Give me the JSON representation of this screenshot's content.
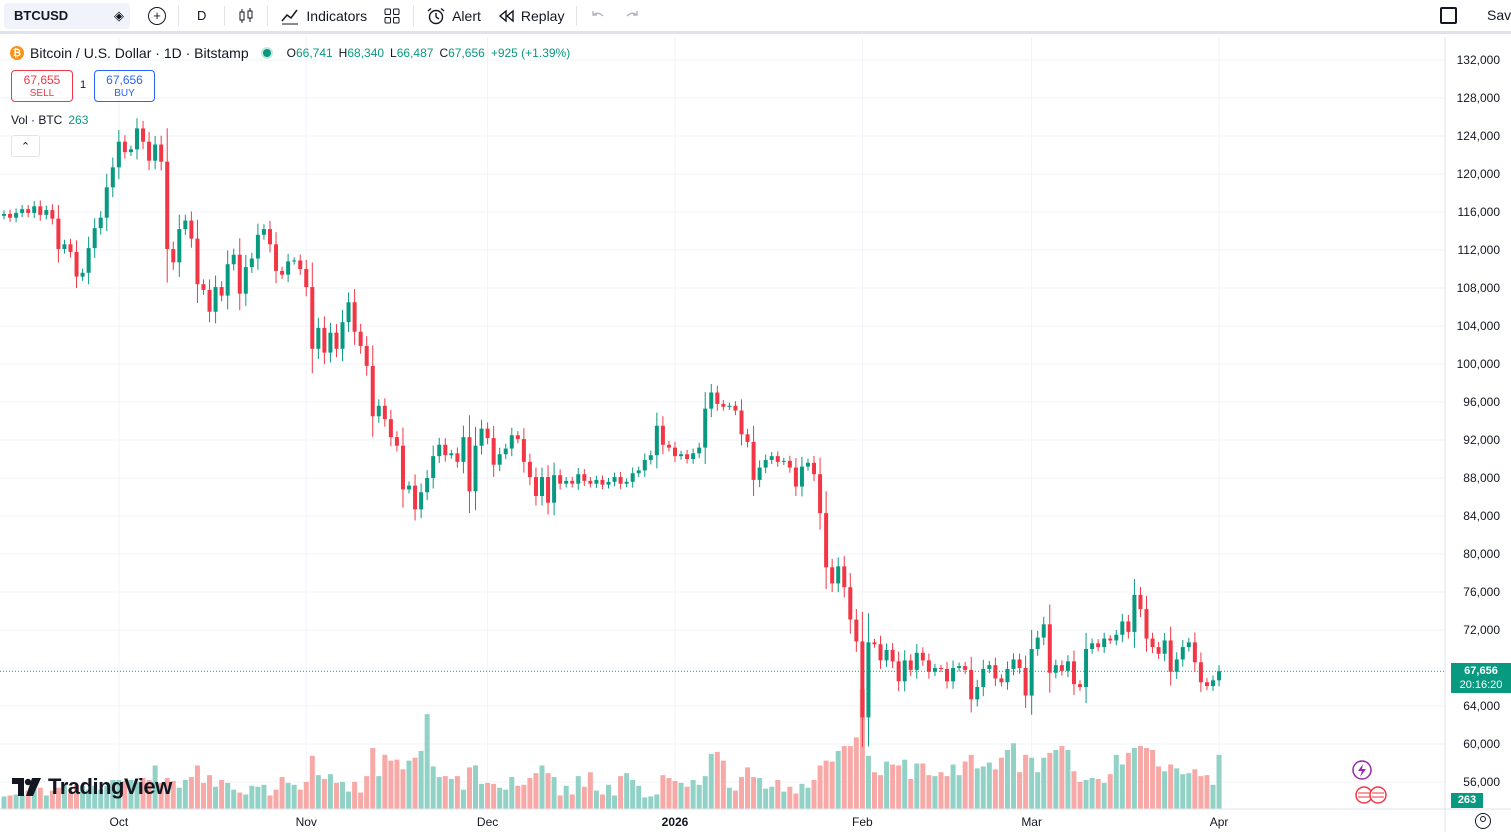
{
  "toolbar": {
    "symbol": "BTCUSD",
    "interval": "D",
    "indicators_label": "Indicators",
    "alert_label": "Alert",
    "replay_label": "Replay",
    "save_label": "Save"
  },
  "legend": {
    "title": "Bitcoin / U.S. Dollar · 1D · Bitstamp",
    "open_key": "O",
    "open": "66,741",
    "high_key": "H",
    "high": "68,340",
    "low_key": "L",
    "low": "66,487",
    "close_key": "C",
    "close": "67,656",
    "change": "+925 (+1.39%)"
  },
  "trade": {
    "sell_price": "67,655",
    "sell_label": "SELL",
    "quantity": "1",
    "buy_price": "67,656",
    "buy_label": "BUY"
  },
  "volume_legend": {
    "label": "Vol · BTC",
    "value": "263"
  },
  "branding": {
    "logo_text": "TradingView"
  },
  "price_tag": {
    "price": "67,656",
    "countdown": "20:16:20"
  },
  "volume_tag": "263",
  "colors": {
    "up": "#089981",
    "down": "#f23645",
    "up_vol": "#92d2c6",
    "down_vol": "#f7a9a7"
  },
  "chart_data": {
    "type": "candlestick",
    "title": "Bitcoin / U.S. Dollar · 1D · Bitstamp",
    "y_axis_labels": [
      "132,000",
      "128,000",
      "124,000",
      "120,000",
      "116,000",
      "112,000",
      "108,000",
      "104,000",
      "100,000",
      "96,000",
      "92,000",
      "88,000",
      "84,000",
      "80,000",
      "76,000",
      "72,000",
      "68,000",
      "64,000",
      "60,000",
      "56,000"
    ],
    "ylim": [
      52800,
      133600
    ],
    "x_axis_labels": [
      "Oct",
      "Nov",
      "Dec",
      "2026",
      "Feb",
      "Mar",
      "Apr"
    ],
    "x_label_dates": [
      "2025-10-01",
      "2025-11-01",
      "2025-12-01",
      "2026-01-01",
      "2026-02-01",
      "2026-03-01",
      "2026-04-01"
    ],
    "start_date": "2025-09-12",
    "series": [
      {
        "name": "close",
        "values": [
          115800,
          115400,
          115900,
          116300,
          115900,
          116600,
          115700,
          116200,
          115300,
          112100,
          112600,
          111800,
          109200,
          109600,
          112200,
          114300,
          115400,
          118600,
          120700,
          123400,
          122300,
          122600,
          124800,
          123400,
          121400,
          123100,
          121300,
          112100,
          110700,
          114200,
          115100,
          113200,
          108400,
          107800,
          105500,
          108100,
          107200,
          110500,
          111500,
          107400,
          110200,
          111100,
          113600,
          114200,
          112600,
          109800,
          109400,
          110800,
          110900,
          110000,
          108100,
          101600,
          103800,
          101200,
          103300,
          101600,
          104400,
          106500,
          103400,
          101900,
          99800,
          94500,
          95600,
          94200,
          92300,
          91400,
          86800,
          87200,
          84700,
          86500,
          88000,
          90300,
          91500,
          90400,
          90600,
          89700,
          92300,
          86600,
          91400,
          93200,
          92200,
          89400,
          90500,
          91100,
          92500,
          92100,
          89700,
          88100,
          86100,
          88100,
          85400,
          88300,
          87400,
          87700,
          87400,
          88400,
          87700,
          87400,
          87800,
          87300,
          87600,
          88100,
          87400,
          87600,
          88500,
          88800,
          89900,
          90400,
          93500,
          91500,
          91200,
          90300,
          90500,
          90000,
          90600,
          91200,
          95300,
          97000,
          95800,
          95500,
          95600,
          95100,
          92600,
          91800,
          87800,
          89100,
          89900,
          90300,
          89700,
          89800,
          89100,
          87100,
          89200,
          89600,
          88400,
          84300,
          78600,
          76900,
          78700,
          76500,
          73100,
          70800,
          62800,
          70700,
          70500,
          68800,
          69900,
          68700,
          66600,
          68800,
          67800,
          69600,
          68800,
          67600,
          68000,
          67900,
          66600,
          68000,
          68200,
          67800,
          64700,
          66000,
          67900,
          68300,
          66900,
          66500,
          67900,
          68900,
          68000,
          65100,
          70000,
          71200,
          72600,
          67500,
          68300,
          67700,
          68700,
          66300,
          66000,
          70000,
          70600,
          70200,
          71100,
          70900,
          71500,
          72900,
          71800,
          75700,
          74200,
          71100,
          70200,
          69500,
          70900,
          67600,
          68900,
          70200,
          70700,
          68600,
          66500,
          66100,
          66700,
          67656
        ]
      },
      {
        "name": "volume",
        "values": [
          1300,
          1400,
          1500,
          1500,
          1900,
          2000,
          2200,
          1400,
          1900,
          2200,
          2500,
          1700,
          2500,
          2400,
          2000,
          2400,
          2000,
          2400,
          3000,
          3000,
          2900,
          3000,
          2800,
          3200,
          3000,
          4500,
          2700,
          3200,
          2900,
          2200,
          3000,
          3300,
          4500,
          2700,
          3500,
          2300,
          3000,
          2700,
          2000,
          1700,
          1500,
          2400,
          2300,
          2500,
          1400,
          2000,
          3300,
          2700,
          2500,
          2000,
          2800,
          5500,
          3500,
          3100,
          3600,
          2700,
          2800,
          1800,
          2800,
          1700,
          3400,
          6300,
          3400,
          5600,
          5000,
          5100,
          4100,
          5000,
          5300,
          6000,
          9800,
          4400,
          3300,
          3400,
          3100,
          3400,
          2000,
          4300,
          4500,
          2600,
          2700,
          2600,
          2200,
          2000,
          3300,
          2400,
          2500,
          3200,
          3700,
          4500,
          3700,
          3300,
          1400,
          2400,
          1500,
          3400,
          2300,
          3800,
          1900,
          1500,
          2500,
          1400,
          3400,
          3700,
          3000,
          2400,
          1200,
          1300,
          1500,
          3500,
          3200,
          2900,
          2700,
          2300,
          3000,
          2500,
          3400,
          5700,
          5900,
          5000,
          2200,
          1900,
          3300,
          4300,
          3300,
          3200,
          2100,
          2300,
          3000,
          1800,
          2300,
          1600,
          2600,
          2200,
          3000,
          4500,
          5000,
          4900,
          6000,
          6500,
          6500,
          7400,
          12400,
          5500,
          3800,
          3500,
          4900,
          4600,
          4500,
          5100,
          3100,
          4700,
          4700,
          3500,
          3400,
          3800,
          3400,
          4600,
          3500,
          4900,
          5600,
          4200,
          4400,
          4800,
          4100,
          5300,
          6100,
          6800,
          3800,
          5600,
          5300,
          3800,
          5300,
          5800,
          6100,
          6500,
          6100,
          3900,
          2800,
          3000,
          3200,
          3100,
          2700,
          3600,
          5600,
          4600,
          5800,
          6300,
          6500,
          6300,
          6100,
          4400,
          3900,
          4600,
          4200,
          3600,
          3700,
          4100,
          3400,
          3500,
          2500,
          5600,
          2900,
          3600,
          3900,
          3800,
          2200,
          1500,
          263
        ]
      }
    ]
  }
}
